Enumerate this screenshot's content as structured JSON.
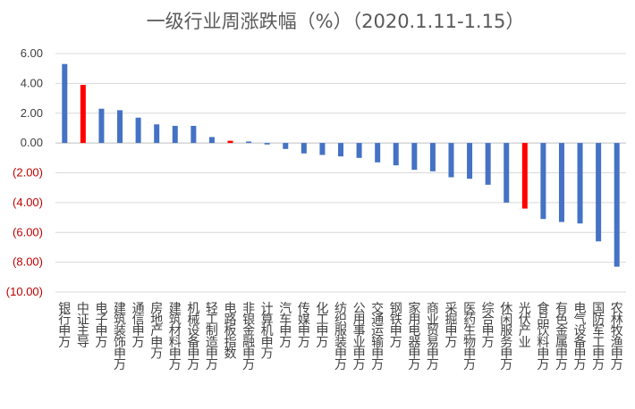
{
  "chart_data": {
    "type": "bar",
    "title": "一级行业周涨跌幅（%）（2020.1.11-1.15）",
    "xlabel": "",
    "ylabel": "",
    "ylim": [
      -10,
      6
    ],
    "yticks": [
      "6.00",
      "4.00",
      "2.00",
      "0.00",
      "(2.00)",
      "(4.00)",
      "(6.00)",
      "(8.00)",
      "(10.00)"
    ],
    "ytick_values": [
      6,
      4,
      2,
      0,
      -2,
      -4,
      -6,
      -8,
      -10
    ],
    "grid": true,
    "legend": "none",
    "colors": {
      "default_bar": "#4472C4",
      "highlight_bar": "#FF0000",
      "grid": "#D9D9D9",
      "positive_tick": "#404040",
      "negative_tick": "#C00000"
    },
    "categories": [
      "银行(申万)",
      "中证主导",
      "电子(申万)",
      "建筑装饰(申万)",
      "通信(申万)",
      "房地产(申万)",
      "建筑材料(申万)",
      "机械设备(申万)",
      "轻工制造(申万)",
      "电路板指数",
      "非银金融(申万)",
      "计算机(申万)",
      "汽车(申万)",
      "传媒(申万)",
      "化工(申万)",
      "纺织服装(申万)",
      "公用事业(申万)",
      "交通运输(申万)",
      "钢铁(申万)",
      "家用电器(申万)",
      "商业贸易(申万)",
      "采掘(申万)",
      "医药生物(申万)",
      "综合(申万)",
      "休闲服务(申万)",
      "光伏产业",
      "食品饮料(申万)",
      "有色金属(申万)",
      "电气设备(申万)",
      "国防军工(申万)",
      "农林牧渔(申万)"
    ],
    "values": [
      5.3,
      3.9,
      2.3,
      2.2,
      1.7,
      1.25,
      1.15,
      1.15,
      0.4,
      0.15,
      0.1,
      -0.1,
      -0.4,
      -0.7,
      -0.8,
      -0.9,
      -1.0,
      -1.3,
      -1.5,
      -1.8,
      -1.9,
      -2.3,
      -2.4,
      -2.8,
      -4.0,
      -4.4,
      -5.1,
      -5.3,
      -5.4,
      -6.6,
      -8.3
    ],
    "highlight": [
      false,
      true,
      false,
      false,
      false,
      false,
      false,
      false,
      false,
      true,
      false,
      false,
      false,
      false,
      false,
      false,
      false,
      false,
      false,
      false,
      false,
      false,
      false,
      false,
      false,
      true,
      false,
      false,
      false,
      false,
      false
    ]
  }
}
